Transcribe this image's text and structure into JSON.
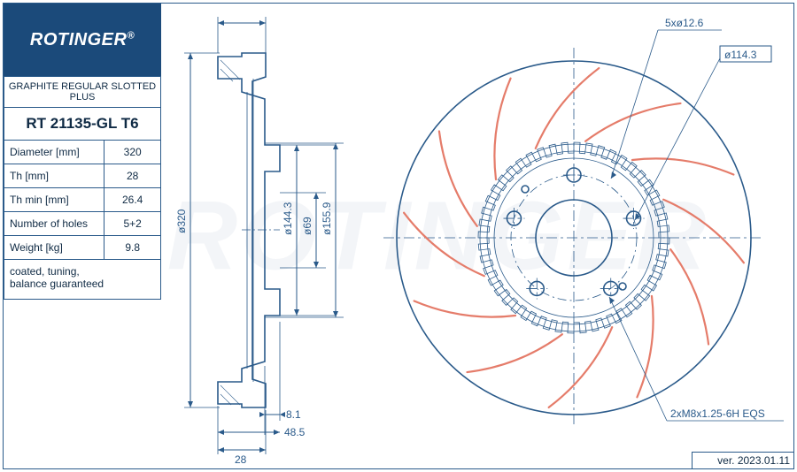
{
  "logo": {
    "brand": "ROTINGER",
    "reg": "®"
  },
  "spec": {
    "title": "GRAPHITE REGULAR SLOTTED PLUS",
    "part_no": "RT 21135-GL T6",
    "rows": [
      {
        "k": "Diameter [mm]",
        "v": "320"
      },
      {
        "k": "Th [mm]",
        "v": "28"
      },
      {
        "k": "Th min [mm]",
        "v": "26.4"
      },
      {
        "k": "Number of holes",
        "v": "5+2"
      },
      {
        "k": "Weight [kg]",
        "v": "9.8"
      }
    ],
    "note": "coated, tuning,\nbalance guaranteed"
  },
  "callouts": {
    "bolt_pattern": "5xø12.6",
    "pcd": "ø114.3",
    "thread": "2xM8x1.25-6H  EQS"
  },
  "side_dims": {
    "outer_dia": "ø320",
    "inner1": "ø144.3",
    "inner2": "ø69",
    "inner3": "ø155.9",
    "offset1": "8.1",
    "offset2": "48.5",
    "thickness": "28"
  },
  "version": "ver. 2023.01.11",
  "watermark": "ROTINGER",
  "style": {
    "line_color": "#2a5a8a",
    "slot_color": "#e57c6a",
    "bg": "#ffffff",
    "logo_bg": "#1b4a7a",
    "text_color": "#0f2a44"
  },
  "disc": {
    "type": "technical-drawing",
    "outer_r": 200,
    "inner_hole_r": 43,
    "hub_inner_r": 90,
    "hub_outer_r": 98,
    "slot_band_outer": 200,
    "slot_band_inner": 106,
    "slot_count": 12,
    "bolt_count": 5,
    "bolt_r": 8,
    "bolt_pcd_r": 71,
    "tooth_ring_r_out": 108,
    "tooth_ring_r_in": 96,
    "tooth_count": 48
  }
}
